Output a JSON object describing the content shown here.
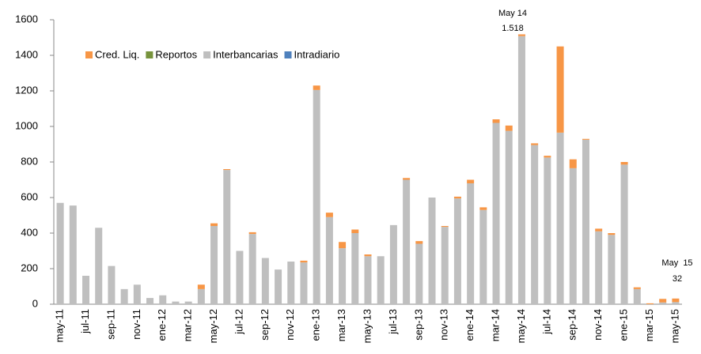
{
  "chart_data": {
    "type": "stacked_bar",
    "categories": [
      "may-11",
      null,
      "jul-11",
      null,
      "sep-11",
      null,
      "nov-11",
      null,
      "ene-12",
      null,
      "mar-12",
      null,
      "may-12",
      null,
      "jul-12",
      null,
      "sep-12",
      null,
      "nov-12",
      null,
      "ene-13",
      null,
      "mar-13",
      null,
      "may-13",
      null,
      "jul-13",
      null,
      "sep-13",
      null,
      "nov-13",
      null,
      "ene-14",
      null,
      "mar-14",
      null,
      "may-14",
      null,
      "jul-14",
      null,
      "sep-14",
      null,
      "nov-14",
      null,
      "ene-15",
      null,
      "mar-15",
      null,
      "may-15"
    ],
    "series": [
      {
        "name": "Cred. Liq.",
        "color": "#f79646",
        "values": [
          0,
          0,
          0,
          0,
          0,
          0,
          0,
          0,
          0,
          0,
          0,
          25,
          15,
          5,
          0,
          10,
          0,
          0,
          0,
          10,
          25,
          25,
          35,
          20,
          10,
          0,
          0,
          10,
          15,
          0,
          5,
          10,
          20,
          15,
          20,
          30,
          10,
          10,
          10,
          485,
          50,
          5,
          15,
          10,
          15,
          10,
          5,
          20,
          20
        ]
      },
      {
        "name": "Reportos",
        "color": "#77933c",
        "values": [
          0,
          0,
          0,
          0,
          0,
          0,
          0,
          0,
          0,
          0,
          0,
          0,
          0,
          0,
          0,
          0,
          0,
          0,
          0,
          0,
          0,
          0,
          0,
          0,
          0,
          0,
          0,
          0,
          0,
          0,
          0,
          0,
          0,
          0,
          0,
          0,
          0,
          0,
          0,
          0,
          0,
          0,
          0,
          0,
          0,
          0,
          0,
          0,
          0
        ]
      },
      {
        "name": "Interbancarias",
        "color": "#bfbfbf",
        "values": [
          570,
          555,
          160,
          430,
          215,
          85,
          110,
          35,
          50,
          15,
          15,
          85,
          440,
          755,
          300,
          395,
          260,
          195,
          240,
          235,
          1205,
          490,
          315,
          400,
          270,
          270,
          445,
          700,
          340,
          600,
          435,
          595,
          680,
          530,
          1020,
          975,
          1508,
          895,
          825,
          965,
          765,
          925,
          410,
          390,
          785,
          85,
          0,
          10,
          12
        ]
      },
      {
        "name": "Intradiario",
        "color": "#4f81bd",
        "values": [
          0,
          0,
          0,
          0,
          0,
          0,
          0,
          0,
          0,
          0,
          0,
          0,
          0,
          0,
          0,
          0,
          0,
          0,
          0,
          0,
          0,
          0,
          0,
          0,
          0,
          0,
          0,
          0,
          0,
          0,
          0,
          0,
          0,
          0,
          0,
          0,
          0,
          0,
          0,
          0,
          0,
          0,
          0,
          0,
          0,
          0,
          0,
          0,
          0
        ]
      }
    ],
    "ylim": [
      0,
      1600
    ],
    "yticks": [
      0,
      200,
      400,
      600,
      800,
      1000,
      1200,
      1400,
      1600
    ],
    "annotations": [
      {
        "text": "May 14"
      },
      {
        "text": "1.518"
      },
      {
        "text": "May  15"
      },
      {
        "text": "32"
      }
    ]
  }
}
